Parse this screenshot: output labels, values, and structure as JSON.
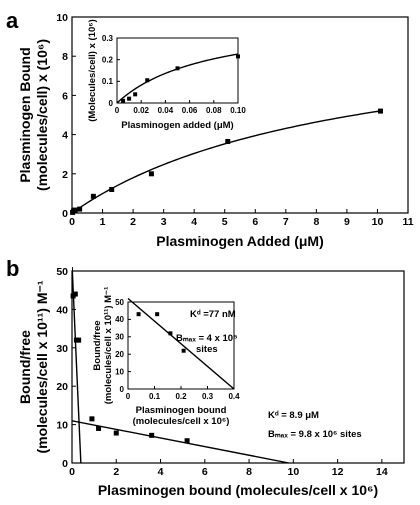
{
  "chart_data": [
    {
      "id": "a-main",
      "panel_label": "a",
      "type": "scatter",
      "xlabel": "Plasminogen Added (μM)",
      "ylabel_lines": [
        "Plasminogen Bound",
        "(molecules/cell) x (10⁶)"
      ],
      "xlim": [
        0,
        11
      ],
      "ylim": [
        0,
        10
      ],
      "xticks": [
        0,
        1,
        2,
        3,
        4,
        5,
        6,
        7,
        8,
        9,
        10,
        11
      ],
      "yticks": [
        0,
        2,
        4,
        6,
        8,
        10
      ],
      "points": [
        {
          "x": 0.02,
          "y": 0.03
        },
        {
          "x": 0.05,
          "y": 0.1
        },
        {
          "x": 0.1,
          "y": 0.15
        },
        {
          "x": 0.25,
          "y": 0.2
        },
        {
          "x": 0.7,
          "y": 0.85
        },
        {
          "x": 1.3,
          "y": 1.2
        },
        {
          "x": 2.6,
          "y": 2.0
        },
        {
          "x": 5.1,
          "y": 3.65
        },
        {
          "x": 10.1,
          "y": 5.2
        }
      ],
      "fit": {
        "type": "hyperbola",
        "bmax": 9.8,
        "kd": 8.9
      }
    },
    {
      "id": "a-inset",
      "type": "scatter",
      "xlabel": "Plasminogen added (μM)",
      "ylabel": "(Molecules/cell) x (10⁶)",
      "xlim": [
        0,
        0.1
      ],
      "ylim": [
        0,
        0.3
      ],
      "xticks": [
        0,
        0.02,
        0.04,
        0.06,
        0.08,
        0.1
      ],
      "xtick_labels": [
        "0",
        "0.02",
        "0.04",
        "0.06",
        "0.08",
        "0.10"
      ],
      "yticks": [
        0,
        0.1,
        0.2,
        0.3
      ],
      "ytick_labels": [
        "0",
        "0.1",
        "0.2",
        "0.3"
      ],
      "points": [
        {
          "x": 0.005,
          "y": 0.01
        },
        {
          "x": 0.01,
          "y": 0.02
        },
        {
          "x": 0.015,
          "y": 0.04
        },
        {
          "x": 0.025,
          "y": 0.105
        },
        {
          "x": 0.05,
          "y": 0.16
        },
        {
          "x": 0.1,
          "y": 0.215
        }
      ],
      "fit": {
        "type": "hyperbola",
        "bmax": 0.4,
        "kd": 0.077
      }
    },
    {
      "id": "b-main",
      "panel_label": "b",
      "type": "scatter",
      "xlabel": "Plasminogen bound (molecules/cell x 10⁶)",
      "ylabel_lines": [
        "Bound/free",
        "(molecules/cell x 10¹¹) M⁻¹"
      ],
      "xlim": [
        0,
        15
      ],
      "ylim": [
        0,
        50
      ],
      "xticks": [
        0,
        2,
        4,
        6,
        8,
        10,
        12,
        14
      ],
      "yticks": [
        0,
        10,
        20,
        30,
        40,
        50
      ],
      "points": [
        {
          "x": 0.05,
          "y": 43.5
        },
        {
          "x": 0.15,
          "y": 44
        },
        {
          "x": 0.2,
          "y": 32
        },
        {
          "x": 0.3,
          "y": 32
        },
        {
          "x": 0.9,
          "y": 11.5
        },
        {
          "x": 1.2,
          "y": 9
        },
        {
          "x": 2.0,
          "y": 7.8
        },
        {
          "x": 3.6,
          "y": 7.2
        },
        {
          "x": 5.2,
          "y": 5.8
        }
      ],
      "lines": [
        {
          "x": [
            0,
            9.8
          ],
          "y": [
            11.0,
            0
          ]
        },
        {
          "x": [
            0,
            0.4
          ],
          "y": [
            52,
            0
          ]
        }
      ],
      "annotation": {
        "kd": "Kᵈ = 8.9 μM",
        "bmax": "Bₘₐₓ = 9.8 x 10⁶ sites"
      }
    },
    {
      "id": "b-inset",
      "type": "scatter",
      "xlabel_lines": [
        "Plasminogen bound",
        "(molecules/cell x 10⁶)"
      ],
      "ylabel_lines": [
        "Bound/free",
        "(molecules/cell x 10¹¹) M⁻¹"
      ],
      "xlim": [
        0,
        0.4
      ],
      "ylim": [
        0,
        50
      ],
      "xticks": [
        0,
        0.1,
        0.2,
        0.3,
        0.4
      ],
      "xtick_labels": [
        "0",
        "0.1",
        "0.2",
        "0.3",
        "0.4"
      ],
      "yticks": [
        0,
        10,
        20,
        30,
        40,
        50
      ],
      "points": [
        {
          "x": 0.04,
          "y": 43
        },
        {
          "x": 0.11,
          "y": 43
        },
        {
          "x": 0.16,
          "y": 32
        },
        {
          "x": 0.21,
          "y": 22
        }
      ],
      "lines": [
        {
          "x": [
            0,
            0.4
          ],
          "y": [
            52,
            0
          ]
        }
      ],
      "annotation": {
        "kd": "Kᵈ =77 nM",
        "bmax": "Bₘₐₓ = 4 x 10⁵",
        "bmax2": "sites"
      }
    }
  ]
}
